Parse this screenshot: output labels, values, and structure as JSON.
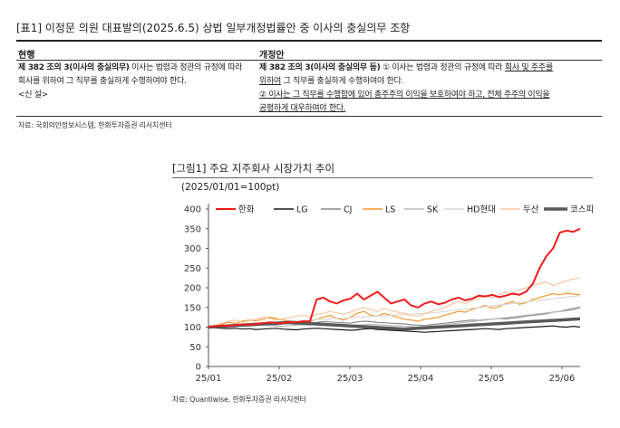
{
  "table": {
    "title": "[표1]   이정문 의원 대표발의(2025.6.5) 상법 일부개정법률안 중 이사의 충실의무 조항",
    "col_current": "현행",
    "col_amend": "개정안",
    "current_bold": "제 382 조의 3(이사의 충실의무)",
    "current_line1_rest": " 이사는 법령과 정관의 규정에 따라",
    "current_line2": "회사를 위하여 그 직무를 충실하게 수행하여야 한다.",
    "current_line3": "<신 설>",
    "amend_bold": "제 382 조의 3(이사의 충실의무 등)",
    "amend_line1_a": " ① 이사는 법령과 정관의 규정에 따라 ",
    "amend_line1_u": "회사 및 주주를",
    "amend_line2_u": "위하여",
    "amend_line2_rest": " 그 직무를 충실하게 수행하여야 한다.",
    "amend_line3_u": "② 이사는 그 직무를 수행함에 있어 총주주의 이익을 보호하여야 하고, 전체 주주의 이익을",
    "amend_line4_u": "공평하게 대우하여야 한다.",
    "source": "자료: 국회의안정보시스템, 한화투자증권 리서치센터"
  },
  "figure": {
    "title": "[그림1]    주요 지주회사 시장가치 추이",
    "subtitle": "(2025/01/01=100pt)",
    "source": "자료: Quantiwise, 한화투자증권 리서치센터"
  },
  "chart_data": {
    "type": "line",
    "ylim": [
      0,
      400
    ],
    "y_ticks": [
      "0",
      "50",
      "100",
      "150",
      "200",
      "250",
      "300",
      "350",
      "400"
    ],
    "x_ticks": [
      "25/01",
      "25/02",
      "25/03",
      "25/04",
      "25/05",
      "25/06"
    ],
    "grid": false,
    "legend_position": "top",
    "series": [
      {
        "name": "한화",
        "color": "#ee1c1c",
        "width": 2,
        "values": [
          100,
          102,
          104,
          103,
          105,
          107,
          106,
          108,
          110,
          112,
          111,
          110,
          113,
          112,
          115,
          114,
          170,
          175,
          165,
          160,
          168,
          172,
          185,
          170,
          180,
          190,
          175,
          160,
          165,
          170,
          155,
          150,
          160,
          165,
          158,
          162,
          170,
          175,
          168,
          172,
          180,
          178,
          182,
          176,
          180,
          185,
          182,
          190,
          210,
          250,
          280,
          300,
          340,
          345,
          342,
          350
        ]
      },
      {
        "name": "LG",
        "color": "#1a1a1a",
        "width": 1.2,
        "values": [
          100,
          98,
          97,
          96,
          97,
          95,
          96,
          94,
          95,
          96,
          97,
          95,
          94,
          93,
          95,
          96,
          97,
          96,
          95,
          94,
          93,
          92,
          93,
          95,
          96,
          94,
          93,
          92,
          91,
          90,
          89,
          88,
          87,
          88,
          89,
          90,
          91,
          92,
          93,
          94,
          95,
          96,
          95,
          94,
          96,
          97,
          98,
          99,
          100,
          101,
          102,
          103,
          101,
          100,
          102,
          100
        ]
      },
      {
        "name": "CJ",
        "color": "#8a8a8a",
        "width": 1.2,
        "values": [
          100,
          101,
          103,
          104,
          105,
          103,
          104,
          106,
          107,
          105,
          106,
          108,
          109,
          107,
          108,
          110,
          112,
          114,
          113,
          112,
          111,
          110,
          113,
          115,
          114,
          112,
          111,
          110,
          109,
          108,
          106,
          105,
          104,
          106,
          108,
          110,
          112,
          114,
          116,
          118,
          117,
          119,
          120,
          122,
          121,
          123,
          125,
          128,
          130,
          132,
          134,
          138,
          140,
          142,
          145,
          150
        ]
      },
      {
        "name": "LS",
        "color": "#f39a2a",
        "width": 1.2,
        "values": [
          100,
          104,
          108,
          112,
          110,
          115,
          118,
          116,
          120,
          125,
          122,
          118,
          115,
          112,
          110,
          115,
          120,
          125,
          130,
          122,
          118,
          125,
          135,
          140,
          130,
          128,
          135,
          130,
          125,
          120,
          118,
          115,
          120,
          122,
          125,
          130,
          135,
          140,
          138,
          145,
          150,
          155,
          148,
          152,
          160,
          165,
          158,
          162,
          170,
          175,
          180,
          185,
          182,
          186,
          184,
          182
        ]
      },
      {
        "name": "SK",
        "color": "#b8b8b8",
        "width": 1.2,
        "values": [
          100,
          101,
          102,
          103,
          104,
          102,
          103,
          104,
          105,
          104,
          103,
          102,
          104,
          105,
          106,
          105,
          107,
          106,
          105,
          104,
          103,
          104,
          105,
          106,
          107,
          106,
          105,
          104,
          103,
          102,
          101,
          100,
          102,
          103,
          104,
          106,
          108,
          110,
          112,
          114,
          116,
          118,
          120,
          122,
          124,
          126,
          128,
          130,
          132,
          134,
          136,
          138,
          140,
          145,
          148,
          152
        ]
      },
      {
        "name": "HD현대",
        "color": "#d9d9d9",
        "width": 1.2,
        "values": [
          100,
          102,
          104,
          106,
          108,
          107,
          109,
          111,
          110,
          112,
          114,
          113,
          115,
          117,
          116,
          118,
          120,
          119,
          121,
          123,
          122,
          124,
          126,
          125,
          127,
          129,
          128,
          130,
          132,
          131,
          133,
          135,
          134,
          136,
          138,
          140,
          142,
          144,
          146,
          148,
          150,
          152,
          154,
          156,
          158,
          160,
          162,
          164,
          166,
          168,
          170,
          172,
          174,
          176,
          178,
          180
        ]
      },
      {
        "name": "두산",
        "color": "#f8c7a0",
        "width": 1.2,
        "values": [
          100,
          105,
          110,
          115,
          118,
          112,
          116,
          120,
          125,
          122,
          118,
          121,
          124,
          128,
          130,
          126,
          132,
          135,
          140,
          136,
          132,
          138,
          145,
          150,
          145,
          140,
          148,
          142,
          138,
          135,
          130,
          128,
          135,
          140,
          145,
          150,
          158,
          165,
          160,
          168,
          172,
          180,
          175,
          182,
          190,
          185,
          195,
          200,
          205,
          210,
          215,
          205,
          212,
          218,
          222,
          225
        ]
      },
      {
        "name": "코스피",
        "color": "#595959",
        "width": 3.5,
        "values": [
          100,
          101,
          102,
          103,
          104,
          105,
          106,
          107,
          108,
          109,
          110,
          111,
          112,
          111,
          110,
          109,
          108,
          107,
          106,
          105,
          104,
          103,
          102,
          101,
          100,
          99,
          98,
          97,
          96,
          95,
          96,
          97,
          98,
          99,
          100,
          101,
          102,
          103,
          104,
          105,
          106,
          107,
          108,
          109,
          110,
          111,
          112,
          113,
          114,
          115,
          116,
          117,
          118,
          119,
          120,
          121
        ]
      }
    ]
  }
}
